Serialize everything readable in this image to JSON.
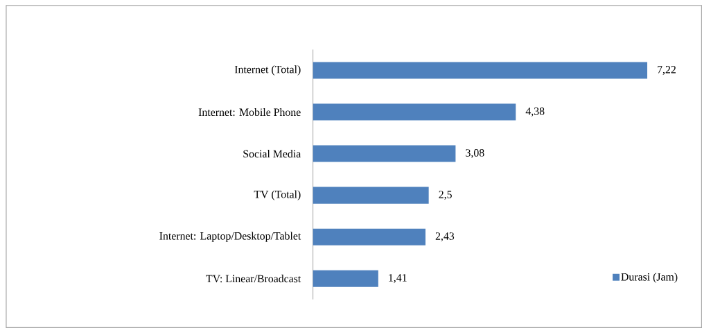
{
  "chart_data": {
    "type": "bar",
    "orientation": "horizontal",
    "categories": [
      "Internet (Total)",
      "Internet: Mobile Phone",
      "Social Media",
      "TV (Total)",
      "Internet: Laptop/Desktop/Tablet",
      "TV: Linear/Broadcast"
    ],
    "series": [
      {
        "name": "Durasi (Jam)",
        "color": "#4f81bd",
        "values": [
          7.22,
          4.38,
          3.08,
          2.5,
          2.43,
          1.41
        ],
        "value_labels": [
          "7,22",
          "4,38",
          "3,08",
          "2,5",
          "2,43",
          "1,41"
        ]
      }
    ],
    "legend": "bottom right"
  }
}
